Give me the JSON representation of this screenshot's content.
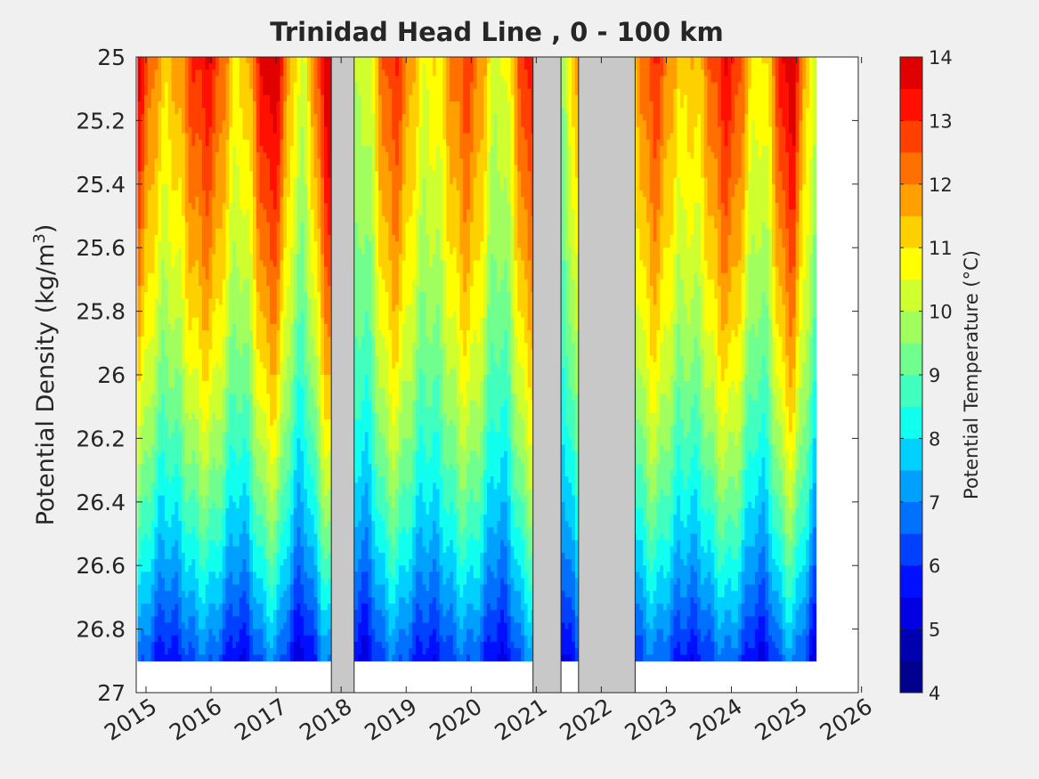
{
  "chart_data": {
    "type": "heatmap",
    "title": "Trinidad Head Line , 0 - 100 km",
    "xlabel": "",
    "ylabel": "Potential Density (kg/m",
    "ylabel_sup": "3",
    "ylabel_close": ")",
    "xlim": [
      2014.85,
      2025.95
    ],
    "ylim": [
      25,
      27
    ],
    "y_reversed": true,
    "x_ticks": [
      2015,
      2016,
      2017,
      2018,
      2019,
      2020,
      2021,
      2022,
      2023,
      2024,
      2025,
      2026
    ],
    "x_tick_labels": [
      "2015",
      "2016",
      "2017",
      "2018",
      "2019",
      "2020",
      "2021",
      "2022",
      "2023",
      "2024",
      "2025",
      "2026"
    ],
    "y_ticks": [
      25,
      25.2,
      25.4,
      25.6,
      25.8,
      26,
      26.2,
      26.4,
      26.6,
      26.8,
      27
    ],
    "y_tick_labels": [
      "25",
      "25.2",
      "25.4",
      "25.6",
      "25.8",
      "26",
      "26.2",
      "26.4",
      "26.6",
      "26.8",
      "27"
    ],
    "colorbar": {
      "label": "Potential Temperature (°C)",
      "min": 4,
      "max": 14,
      "ticks": [
        4,
        5,
        6,
        7,
        8,
        9,
        10,
        11,
        12,
        13,
        14
      ],
      "tick_labels": [
        "4",
        "5",
        "6",
        "7",
        "8",
        "9",
        "10",
        "11",
        "12",
        "13",
        "14"
      ],
      "level_step": 0.5,
      "colors": [
        "#00008f",
        "#0000b0",
        "#0000e0",
        "#0010ff",
        "#0040ff",
        "#0070ff",
        "#00a0ff",
        "#00d0ff",
        "#10ffef",
        "#40ffbf",
        "#70ff8f",
        "#a0ff5f",
        "#d0ff2f",
        "#ffff00",
        "#ffd000",
        "#ffa000",
        "#ff7000",
        "#ff4000",
        "#ff1000",
        "#e00000"
      ]
    },
    "no_data_gaps": [
      [
        2017.85,
        2018.2
      ],
      [
        2020.95,
        2021.38
      ],
      [
        2021.65,
        2022.52
      ]
    ],
    "data_end_year": 2025.3,
    "grid": false
  }
}
